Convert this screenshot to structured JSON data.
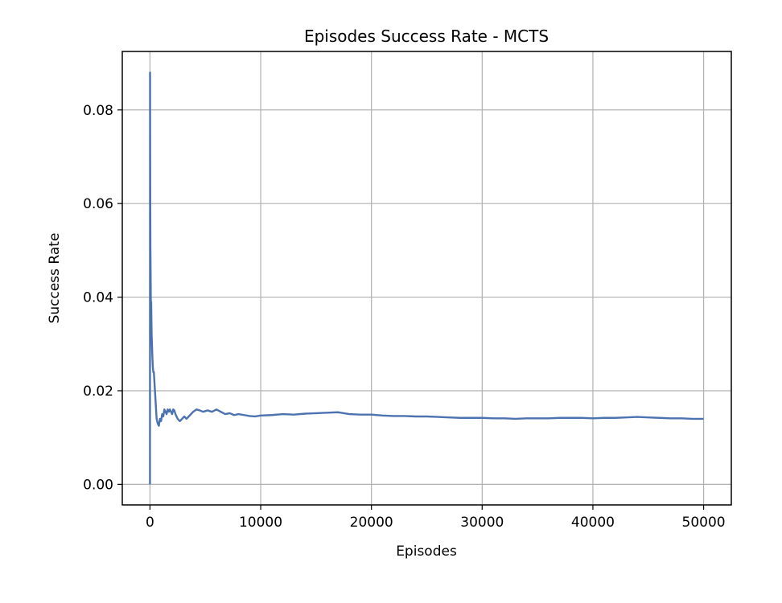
{
  "chart_data": {
    "type": "line",
    "title": "Episodes Success Rate - MCTS",
    "xlabel": "Episodes",
    "ylabel": "Success Rate",
    "xlim": [
      -2500,
      52500
    ],
    "ylim": [
      -0.0044,
      0.0925
    ],
    "xticks": [
      0,
      10000,
      20000,
      30000,
      40000,
      50000
    ],
    "xtick_labels": [
      "0",
      "10000",
      "20000",
      "30000",
      "40000",
      "50000"
    ],
    "yticks": [
      0.0,
      0.02,
      0.04,
      0.06,
      0.08
    ],
    "ytick_labels": [
      "0.00",
      "0.02",
      "0.04",
      "0.06",
      "0.08"
    ],
    "grid": true,
    "series": [
      {
        "color": "#4c72b0",
        "x": [
          1,
          8,
          15,
          25,
          40,
          60,
          80,
          100,
          110,
          130,
          150,
          180,
          220,
          260,
          300,
          350,
          400,
          450,
          500,
          550,
          600,
          650,
          700,
          800,
          900,
          1000,
          1100,
          1200,
          1300,
          1400,
          1500,
          1600,
          1700,
          1800,
          1900,
          2000,
          2100,
          2200,
          2300,
          2500,
          2700,
          2900,
          3100,
          3300,
          3500,
          3700,
          3900,
          4200,
          4500,
          4800,
          5200,
          5600,
          6000,
          6400,
          6800,
          7200,
          7600,
          8000,
          8500,
          9000,
          9500,
          10000,
          11000,
          12000,
          13000,
          14000,
          15000,
          16000,
          17000,
          18000,
          19000,
          20000,
          21000,
          22000,
          23000,
          24000,
          25000,
          26000,
          27000,
          28000,
          29000,
          30000,
          31000,
          32000,
          33000,
          34000,
          35000,
          36000,
          37000,
          38000,
          39000,
          40000,
          41000,
          42000,
          43000,
          44000,
          45000,
          46000,
          47000,
          48000,
          49000,
          50000
        ],
        "y": [
          0.0,
          0.088,
          0.074,
          0.062,
          0.051,
          0.045,
          0.038,
          0.031,
          0.039,
          0.035,
          0.032,
          0.03,
          0.027,
          0.025,
          0.024,
          0.024,
          0.022,
          0.02,
          0.018,
          0.016,
          0.014,
          0.0135,
          0.013,
          0.0125,
          0.014,
          0.0135,
          0.015,
          0.0145,
          0.016,
          0.0155,
          0.015,
          0.016,
          0.0155,
          0.016,
          0.0155,
          0.015,
          0.016,
          0.0158,
          0.015,
          0.014,
          0.0135,
          0.014,
          0.0145,
          0.014,
          0.0145,
          0.015,
          0.0155,
          0.016,
          0.0158,
          0.0155,
          0.0158,
          0.0155,
          0.016,
          0.0155,
          0.015,
          0.0152,
          0.0148,
          0.015,
          0.0148,
          0.0146,
          0.0145,
          0.0147,
          0.0148,
          0.015,
          0.0149,
          0.0151,
          0.0152,
          0.0153,
          0.0154,
          0.015,
          0.0149,
          0.0149,
          0.0147,
          0.0146,
          0.0146,
          0.0145,
          0.0145,
          0.0144,
          0.0143,
          0.0142,
          0.0142,
          0.0142,
          0.0141,
          0.0141,
          0.014,
          0.0141,
          0.0141,
          0.0141,
          0.0142,
          0.0142,
          0.0142,
          0.0141,
          0.0142,
          0.0142,
          0.0143,
          0.0144,
          0.0143,
          0.0142,
          0.0141,
          0.0141,
          0.014,
          0.014
        ]
      }
    ]
  }
}
